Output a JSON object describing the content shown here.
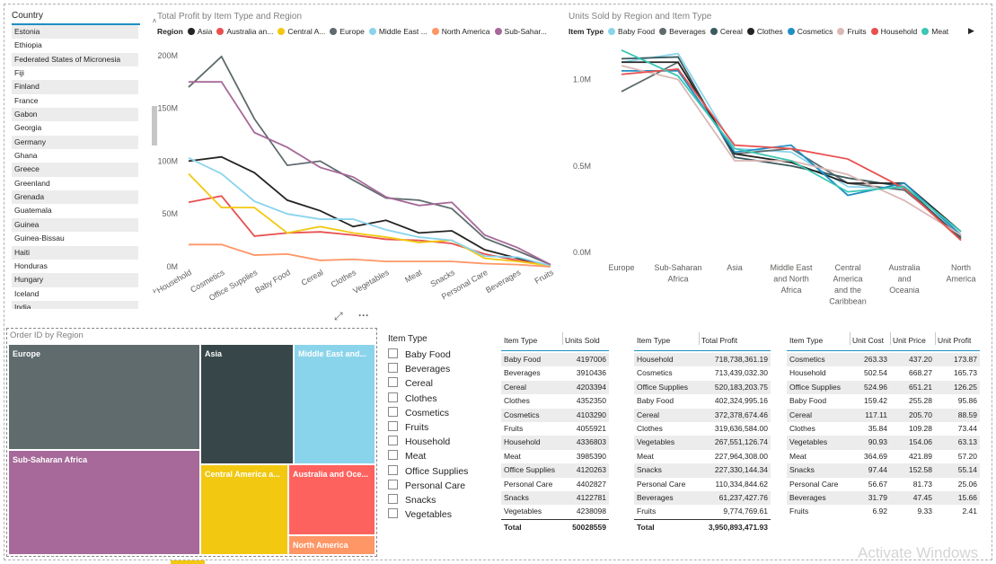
{
  "country_slicer": {
    "title": "Country",
    "items": [
      "Estonia",
      "Ethiopia",
      "Federated States of Micronesia",
      "Fiji",
      "Finland",
      "France",
      "Gabon",
      "Georgia",
      "Germany",
      "Ghana",
      "Greece",
      "Greenland",
      "Grenada",
      "Guatemala",
      "Guinea",
      "Guinea-Bissau",
      "Haiti",
      "Honduras",
      "Hungary",
      "Iceland",
      "India"
    ]
  },
  "profit_chart": {
    "title": "Total Profit by Item Type and Region",
    "legend_label": "Region",
    "legend_items": [
      "Asia",
      "Australia an...",
      "Central A...",
      "Europe",
      "Middle East ...",
      "North America",
      "Sub-Sahar..."
    ],
    "chart_data": {
      "type": "line",
      "title": "Total Profit by Item Type and Region",
      "categories": [
        "Household",
        "Cosmetics",
        "Office Supplies",
        "Baby Food",
        "Cereal",
        "Clothes",
        "Vegetables",
        "Meat",
        "Snacks",
        "Personal Care",
        "Beverages",
        "Fruits"
      ],
      "y_ticks": [
        "0M",
        "50M",
        "100M",
        "150M",
        "200M"
      ],
      "ylim": [
        0,
        210
      ],
      "series": [
        {
          "name": "Asia",
          "color": "#252423",
          "values": [
            100,
            104,
            89,
            63,
            53,
            38,
            44,
            32,
            34,
            16,
            8,
            1
          ]
        },
        {
          "name": "Australia an...",
          "color": "#e8504f",
          "values": [
            61,
            67,
            29,
            32,
            33,
            30,
            26,
            25,
            22,
            12,
            6,
            1
          ]
        },
        {
          "name": "Central A...",
          "color": "#f2c811",
          "values": [
            88,
            56,
            56,
            32,
            38,
            32,
            28,
            23,
            25,
            8,
            5,
            1
          ]
        },
        {
          "name": "Europe",
          "color": "#5f6b6d",
          "values": [
            170,
            199,
            140,
            96,
            100,
            82,
            65,
            63,
            55,
            27,
            15,
            2
          ]
        },
        {
          "name": "Middle East ...",
          "color": "#8ad4eb",
          "values": [
            103,
            88,
            62,
            50,
            45,
            45,
            35,
            28,
            25,
            10,
            9,
            1
          ]
        },
        {
          "name": "North America",
          "color": "#fe9666",
          "values": [
            21,
            21,
            11,
            12,
            6,
            7,
            5,
            5,
            5,
            3,
            2,
            0
          ]
        },
        {
          "name": "Sub-Sahar...",
          "color": "#a66999",
          "values": [
            175,
            175,
            127,
            113,
            94,
            85,
            66,
            58,
            61,
            30,
            18,
            2
          ]
        }
      ]
    }
  },
  "units_chart": {
    "title": "Units Sold by Region and Item Type",
    "legend_label": "Item Type",
    "legend_items": [
      "Baby Food",
      "Beverages",
      "Cereal",
      "Clothes",
      "Cosmetics",
      "Fruits",
      "Household",
      "Meat"
    ],
    "chart_data": {
      "type": "line",
      "title": "Units Sold by Region and Item Type",
      "categories": [
        "Europe",
        "Sub-Saharan Africa",
        "Asia",
        "Middle East and North Africa",
        "Central America and the Caribbean",
        "Australia and Oceania",
        "North America"
      ],
      "x_tick_lines": [
        [
          "Europe"
        ],
        [
          "Sub-Saharan",
          "Africa"
        ],
        [
          "Asia"
        ],
        [
          "Middle East",
          "and North",
          "Africa"
        ],
        [
          "Central",
          "America",
          "and the",
          "Caribbean"
        ],
        [
          "Australia",
          "and",
          "Oceania"
        ],
        [
          "North",
          "America"
        ]
      ],
      "y_ticks": [
        "0.0M",
        "0.5M",
        "1.0M"
      ],
      "ylim": [
        0,
        1.2
      ],
      "series": [
        {
          "name": "Baby Food",
          "color": "#8ad4eb",
          "values": [
            1.1,
            1.15,
            0.6,
            0.58,
            0.38,
            0.37,
            0.1
          ]
        },
        {
          "name": "Beverages",
          "color": "#5f6b6d",
          "values": [
            0.93,
            1.1,
            0.57,
            0.6,
            0.4,
            0.36,
            0.09
          ]
        },
        {
          "name": "Cereal",
          "color": "#3a5a5d",
          "values": [
            1.12,
            1.13,
            0.55,
            0.5,
            0.43,
            0.38,
            0.08
          ]
        },
        {
          "name": "Clothes",
          "color": "#252423",
          "values": [
            1.1,
            1.1,
            0.57,
            0.52,
            0.4,
            0.4,
            0.12
          ]
        },
        {
          "name": "Cosmetics",
          "color": "#1e90c3",
          "values": [
            1.05,
            1.05,
            0.58,
            0.62,
            0.33,
            0.4,
            0.1
          ]
        },
        {
          "name": "Fruits",
          "color": "#d9b8b5",
          "values": [
            1.08,
            1.0,
            0.53,
            0.53,
            0.45,
            0.3,
            0.1
          ]
        },
        {
          "name": "Household",
          "color": "#e8504f",
          "values": [
            1.03,
            1.06,
            0.62,
            0.6,
            0.54,
            0.37,
            0.07
          ]
        },
        {
          "name": "Meat",
          "color": "#3cc6b3",
          "values": [
            1.17,
            1.02,
            0.6,
            0.53,
            0.35,
            0.38,
            0.12
          ]
        }
      ]
    }
  },
  "treemap": {
    "title": "Order ID by Region",
    "cells": [
      {
        "label": "Europe",
        "color": "#5f6b6d"
      },
      {
        "label": "Sub-Saharan Africa",
        "color": "#a66999"
      },
      {
        "label": "Asia",
        "color": "#374649"
      },
      {
        "label": "Middle East and...",
        "color": "#8ad4eb"
      },
      {
        "label": "Central America a...",
        "color": "#f2c811"
      },
      {
        "label": "Australia and Oce...",
        "color": "#fd625e"
      },
      {
        "label": "North America",
        "color": "#fe9666"
      }
    ]
  },
  "item_slicer": {
    "title": "Item Type",
    "items": [
      "Baby Food",
      "Beverages",
      "Cereal",
      "Clothes",
      "Cosmetics",
      "Fruits",
      "Household",
      "Meat",
      "Office Supplies",
      "Personal Care",
      "Snacks",
      "Vegetables"
    ]
  },
  "units_table": {
    "headers": [
      "Item Type",
      "Units Sold"
    ],
    "rows": [
      [
        "Baby Food",
        "4197006"
      ],
      [
        "Beverages",
        "3910436"
      ],
      [
        "Cereal",
        "4203394"
      ],
      [
        "Clothes",
        "4352350"
      ],
      [
        "Cosmetics",
        "4103290"
      ],
      [
        "Fruits",
        "4055921"
      ],
      [
        "Household",
        "4336803"
      ],
      [
        "Meat",
        "3985390"
      ],
      [
        "Office Supplies",
        "4120263"
      ],
      [
        "Personal Care",
        "4402827"
      ],
      [
        "Snacks",
        "4122781"
      ],
      [
        "Vegetables",
        "4238098"
      ]
    ],
    "total": [
      "Total",
      "50028559"
    ]
  },
  "profit_table": {
    "headers": [
      "Item Type",
      "Total Profit"
    ],
    "rows": [
      [
        "Household",
        "718,738,361.19"
      ],
      [
        "Cosmetics",
        "713,439,032.30"
      ],
      [
        "Office Supplies",
        "520,183,203.75"
      ],
      [
        "Baby Food",
        "402,324,995.16"
      ],
      [
        "Cereal",
        "372,378,674.46"
      ],
      [
        "Clothes",
        "319,636,584.00"
      ],
      [
        "Vegetables",
        "267,551,126.74"
      ],
      [
        "Meat",
        "227,964,308.00"
      ],
      [
        "Snacks",
        "227,330,144.34"
      ],
      [
        "Personal Care",
        "110,334,844.62"
      ],
      [
        "Beverages",
        "61,237,427.76"
      ],
      [
        "Fruits",
        "9,774,769.61"
      ]
    ],
    "total": [
      "Total",
      "3,950,893,471.93"
    ]
  },
  "price_table": {
    "headers": [
      "Item Type",
      "Unit Cost",
      "Unit Price",
      "Unit Profit"
    ],
    "rows": [
      [
        "Cosmetics",
        "263.33",
        "437.20",
        "173.87"
      ],
      [
        "Household",
        "502.54",
        "668.27",
        "165.73"
      ],
      [
        "Office Supplies",
        "524.96",
        "651.21",
        "126.25"
      ],
      [
        "Baby Food",
        "159.42",
        "255.28",
        "95.86"
      ],
      [
        "Cereal",
        "117.11",
        "205.70",
        "88.59"
      ],
      [
        "Clothes",
        "35.84",
        "109.28",
        "73.44"
      ],
      [
        "Vegetables",
        "90.93",
        "154.06",
        "63.13"
      ],
      [
        "Meat",
        "364.69",
        "421.89",
        "57.20"
      ],
      [
        "Snacks",
        "97.44",
        "152.58",
        "55.14"
      ],
      [
        "Personal Care",
        "56.67",
        "81.73",
        "25.06"
      ],
      [
        "Beverages",
        "31.79",
        "47.45",
        "15.66"
      ],
      [
        "Fruits",
        "6.92",
        "9.33",
        "2.41"
      ]
    ]
  },
  "watermark": "Activate Windows",
  "visual_header": {
    "focus_icon": "⤢",
    "more_icon": "···"
  }
}
